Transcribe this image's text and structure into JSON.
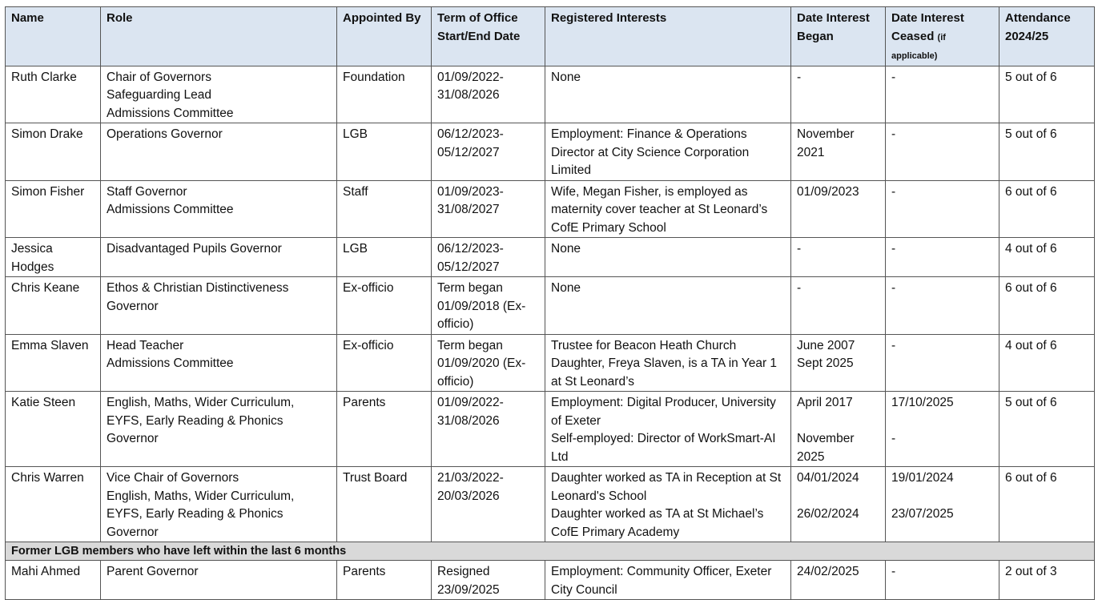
{
  "table": {
    "header": [
      "Name",
      "Role",
      "Appointed By",
      "Term of Office Start/End Date",
      "Registered Interests",
      "Date Interest Began",
      {
        "text": "Date Interest Ceased",
        "note": "(if applicable)"
      },
      "Attendance 2024/25"
    ],
    "rows": [
      [
        [
          "Ruth Clarke"
        ],
        [
          "Chair of Governors",
          "Safeguarding Lead",
          "Admissions Committee"
        ],
        [
          "Foundation"
        ],
        [
          "01/09/2022-31/08/2026"
        ],
        [
          "None"
        ],
        [
          "-"
        ],
        [
          "-"
        ],
        [
          "5 out of 6"
        ]
      ],
      [
        [
          "Simon Drake"
        ],
        [
          "Operations Governor"
        ],
        [
          "LGB"
        ],
        [
          "06/12/2023-05/12/2027"
        ],
        [
          "Employment: Finance & Operations Director at City Science Corporation Limited"
        ],
        [
          "November 2021"
        ],
        [
          "-"
        ],
        [
          "5 out of 6"
        ]
      ],
      [
        [
          "Simon Fisher"
        ],
        [
          "Staff Governor",
          "Admissions Committee"
        ],
        [
          "Staff"
        ],
        [
          "01/09/2023-31/08/2027"
        ],
        [
          "Wife, Megan Fisher, is employed as maternity cover teacher at St Leonard’s CofE Primary School"
        ],
        [
          "01/09/2023"
        ],
        [
          "-"
        ],
        [
          "6 out of 6"
        ]
      ],
      [
        [
          "Jessica Hodges"
        ],
        [
          "Disadvantaged Pupils Governor"
        ],
        [
          "LGB"
        ],
        [
          "06/12/2023-05/12/2027"
        ],
        [
          "None"
        ],
        [
          "-"
        ],
        [
          "-"
        ],
        [
          "4 out of 6"
        ]
      ],
      [
        [
          "Chris Keane"
        ],
        [
          "Ethos & Christian Distinctiveness Governor"
        ],
        [
          "Ex-officio"
        ],
        [
          "Term began 01/09/2018 (Ex-officio)"
        ],
        [
          "None"
        ],
        [
          "-"
        ],
        [
          "-"
        ],
        [
          "6 out of 6"
        ]
      ],
      [
        [
          "Emma Slaven"
        ],
        [
          "Head Teacher",
          "Admissions Committee"
        ],
        [
          "Ex-officio"
        ],
        [
          "Term began 01/09/2020 (Ex-officio)"
        ],
        [
          "Trustee for Beacon Heath Church",
          "Daughter, Freya Slaven, is a TA in Year 1 at St Leonard’s"
        ],
        [
          "June 2007",
          "Sept 2025"
        ],
        [
          "-"
        ],
        [
          "4 out of 6"
        ]
      ],
      [
        [
          "Katie Steen"
        ],
        [
          "English, Maths, Wider Curriculum, EYFS, Early Reading & Phonics Governor"
        ],
        [
          "Parents"
        ],
        [
          "01/09/2022-31/08/2026"
        ],
        [
          "Employment: Digital Producer, University of Exeter",
          "Self-employed: Director of WorkSmart-AI Ltd"
        ],
        [
          "April 2017",
          "November 2025"
        ],
        [
          "17/10/2025",
          "-"
        ],
        [
          "5 out of 6"
        ]
      ],
      [
        [
          "Chris Warren"
        ],
        [
          "Vice Chair of Governors",
          "English, Maths, Wider Curriculum, EYFS, Early Reading & Phonics Governor"
        ],
        [
          "Trust Board"
        ],
        [
          "21/03/2022-20/03/2026"
        ],
        [
          "Daughter worked as TA in Reception at St Leonard's School",
          "Daughter worked as TA at St Michael’s CofE Primary Academy"
        ],
        [
          "04/01/2024",
          "26/02/2024"
        ],
        [
          "19/01/2024",
          "23/07/2025"
        ],
        [
          "6 out of 6"
        ]
      ]
    ],
    "section": "Former LGB members who have left within the last 6 months",
    "former_rows": [
      [
        [
          "Mahi Ahmed"
        ],
        [
          "Parent Governor"
        ],
        [
          "Parents"
        ],
        [
          "Resigned 23/09/2025"
        ],
        [
          "Employment: Community Officer, Exeter City Council"
        ],
        [
          "24/02/2025"
        ],
        [
          "-"
        ],
        [
          "2 out of 3"
        ]
      ]
    ]
  }
}
